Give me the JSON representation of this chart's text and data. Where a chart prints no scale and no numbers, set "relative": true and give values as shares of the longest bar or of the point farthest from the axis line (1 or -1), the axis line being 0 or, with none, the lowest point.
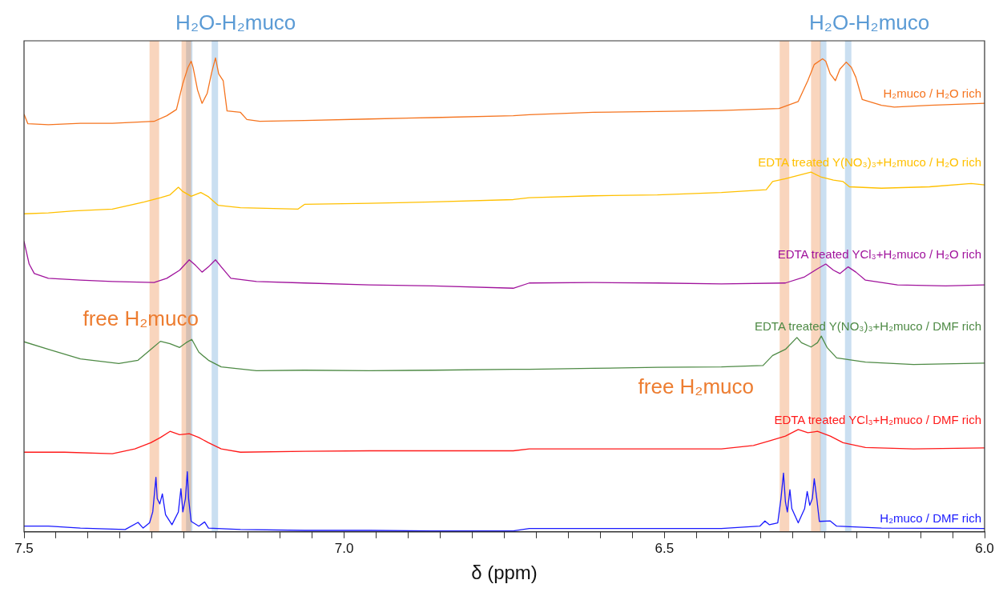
{
  "chart_data": {
    "type": "line",
    "xlabel": "δ (ppm)",
    "relative": true,
    "grid": false,
    "legend": false,
    "marker": "none",
    "line_style": "solid",
    "tick_labels": "x",
    "xlim": [
      7.5,
      6.0
    ],
    "xticks": [
      7.5,
      {
        "value": 7.45,
        "label": null
      },
      {
        "value": 7.4,
        "label": null
      },
      {
        "value": 7.35,
        "label": null
      },
      {
        "value": 7.3,
        "label": null
      },
      {
        "value": 7.25,
        "label": null
      },
      {
        "value": 7.2,
        "label": null
      },
      {
        "value": 7.15,
        "label": null
      },
      {
        "value": 7.1,
        "label": null
      },
      {
        "value": 7.05,
        "label": null
      },
      {
        "value": 7.0,
        "label": "7.0"
      },
      {
        "value": 6.95,
        "label": null
      },
      {
        "value": 6.9,
        "label": null
      },
      {
        "value": 6.85,
        "label": null
      },
      {
        "value": 6.8,
        "label": null
      },
      {
        "value": 6.75,
        "label": null
      },
      {
        "value": 6.7,
        "label": null
      },
      {
        "value": 6.65,
        "label": null
      },
      {
        "value": 6.6,
        "label": null
      },
      {
        "value": 6.55,
        "label": null
      },
      6.5,
      {
        "value": 6.45,
        "label": null
      },
      {
        "value": 6.4,
        "label": null
      },
      {
        "value": 6.35,
        "label": null
      },
      {
        "value": 6.3,
        "label": null
      },
      {
        "value": 6.25,
        "label": null
      },
      {
        "value": 6.2,
        "label": null
      },
      {
        "value": 6.15,
        "label": null
      },
      {
        "value": 6.1,
        "label": null
      },
      {
        "value": 6.05,
        "label": null
      },
      {
        "value": 6.0,
        "label": "6.0"
      }
    ],
    "bands": [
      {
        "axis": "x",
        "from": 7.247,
        "to": 7.237,
        "color": "#5b9bd5"
      },
      {
        "axis": "x",
        "from": 7.207,
        "to": 7.197,
        "color": "#5b9bd5"
      },
      {
        "axis": "x",
        "from": 6.257,
        "to": 6.247,
        "color": "#5b9bd5"
      },
      {
        "axis": "x",
        "from": 6.218,
        "to": 6.208,
        "color": "#5b9bd5"
      },
      {
        "axis": "x",
        "from": 7.304,
        "to": 7.289,
        "color": "#ed7d31"
      },
      {
        "axis": "x",
        "from": 7.254,
        "to": 7.239,
        "color": "#ed7d31"
      },
      {
        "axis": "x",
        "from": 6.32,
        "to": 6.305,
        "color": "#ed7d31"
      },
      {
        "axis": "x",
        "from": 6.271,
        "to": 6.256,
        "color": "#ed7d31"
      }
    ],
    "annotations": [
      "H₂O-H₂muco",
      "H₂O-H₂muco",
      "free H₂muco",
      "free H₂muco"
    ],
    "series": [
      {
        "name": "H₂muco / H₂O rich",
        "color": "#f5741f",
        "x": [
          7.5,
          7.494,
          7.462,
          7.412,
          7.362,
          7.297,
          7.277,
          7.262,
          7.252,
          7.244,
          7.239,
          7.236,
          7.229,
          7.222,
          7.214,
          7.207,
          7.201,
          7.196,
          7.189,
          7.183,
          7.162,
          7.152,
          7.132,
          7.062,
          6.961,
          6.861,
          6.736,
          6.711,
          6.611,
          6.511,
          6.411,
          6.321,
          6.291,
          6.276,
          6.266,
          6.253,
          6.248,
          6.241,
          6.233,
          6.226,
          6.216,
          6.208,
          6.201,
          6.191,
          6.161,
          6.141,
          6.086,
          6.0
        ],
        "values": [
          0.881,
          0.861,
          0.859,
          0.862,
          0.862,
          0.866,
          0.878,
          0.891,
          0.946,
          0.98,
          0.993,
          0.98,
          0.932,
          0.904,
          0.925,
          0.969,
          1,
          0.966,
          0.952,
          0.888,
          0.885,
          0.87,
          0.866,
          0.868,
          0.871,
          0.874,
          0.878,
          0.88,
          0.885,
          0.887,
          0.889,
          0.893,
          0.908,
          0.952,
          0.986,
          0.998,
          0.993,
          0.966,
          0.952,
          0.976,
          0.991,
          0.98,
          0.959,
          0.912,
          0.9,
          0.896,
          0.9,
          0.904
        ]
      },
      {
        "name": "EDTA treated Y(NO₃)₃+H₂muco / H₂O rich",
        "color": "#ffc000",
        "x": [
          7.5,
          7.462,
          7.422,
          7.362,
          7.312,
          7.287,
          7.272,
          7.259,
          7.252,
          7.239,
          7.224,
          7.212,
          7.197,
          7.162,
          7.072,
          7.062,
          6.961,
          6.861,
          6.736,
          6.711,
          6.611,
          6.511,
          6.411,
          6.341,
          6.331,
          6.311,
          6.271,
          6.256,
          6.236,
          6.221,
          6.211,
          6.161,
          6.086,
          6.021,
          6.0
        ],
        "values": [
          0.671,
          0.673,
          0.677,
          0.681,
          0.696,
          0.705,
          0.711,
          0.727,
          0.718,
          0.708,
          0.716,
          0.707,
          0.689,
          0.684,
          0.681,
          0.691,
          0.693,
          0.696,
          0.701,
          0.705,
          0.709,
          0.711,
          0.716,
          0.722,
          0.739,
          0.745,
          0.759,
          0.749,
          0.742,
          0.739,
          0.728,
          0.725,
          0.728,
          0.735,
          0.732
        ]
      },
      {
        "name": "EDTA treated YCl₃+H₂muco / H₂O rich",
        "color": "#a0139c",
        "x": [
          7.5,
          7.492,
          7.484,
          7.462,
          7.412,
          7.362,
          7.297,
          7.277,
          7.257,
          7.242,
          7.232,
          7.222,
          7.212,
          7.201,
          7.192,
          7.177,
          7.137,
          7.062,
          6.961,
          6.861,
          6.736,
          6.711,
          6.611,
          6.511,
          6.411,
          6.311,
          6.281,
          6.261,
          6.248,
          6.236,
          6.226,
          6.213,
          6.201,
          6.186,
          6.136,
          6.061,
          6.0
        ],
        "values": [
          0.613,
          0.565,
          0.545,
          0.535,
          0.531,
          0.528,
          0.526,
          0.535,
          0.552,
          0.574,
          0.562,
          0.548,
          0.559,
          0.574,
          0.559,
          0.535,
          0.528,
          0.525,
          0.521,
          0.519,
          0.514,
          0.525,
          0.526,
          0.525,
          0.523,
          0.525,
          0.538,
          0.555,
          0.565,
          0.552,
          0.545,
          0.559,
          0.548,
          0.531,
          0.521,
          0.519,
          0.521
        ]
      },
      {
        "name": "EDTA treated Y(NO₃)₃+H₂muco / DMF rich",
        "color": "#4e8a45",
        "x": [
          7.5,
          7.462,
          7.412,
          7.352,
          7.322,
          7.302,
          7.287,
          7.272,
          7.257,
          7.247,
          7.238,
          7.227,
          7.212,
          7.192,
          7.137,
          7.062,
          6.961,
          6.861,
          6.736,
          6.711,
          6.611,
          6.511,
          6.411,
          6.346,
          6.331,
          6.311,
          6.293,
          6.286,
          6.271,
          6.261,
          6.255,
          6.246,
          6.231,
          6.186,
          6.111,
          6.0
        ],
        "values": [
          0.401,
          0.385,
          0.365,
          0.355,
          0.362,
          0.385,
          0.402,
          0.397,
          0.389,
          0.399,
          0.406,
          0.379,
          0.362,
          0.348,
          0.34,
          0.341,
          0.34,
          0.341,
          0.343,
          0.343,
          0.345,
          0.347,
          0.348,
          0.351,
          0.372,
          0.385,
          0.41,
          0.399,
          0.39,
          0.399,
          0.413,
          0.389,
          0.367,
          0.358,
          0.353,
          0.356
        ]
      },
      {
        "name": "EDTA treated YCl₃+H₂muco / DMF rich",
        "color": "#ff1a1a",
        "x": [
          7.5,
          7.437,
          7.362,
          7.327,
          7.302,
          7.287,
          7.272,
          7.257,
          7.242,
          7.227,
          7.212,
          7.192,
          7.162,
          7.062,
          6.961,
          6.861,
          6.736,
          6.711,
          6.611,
          6.511,
          6.411,
          6.361,
          6.336,
          6.311,
          6.291,
          6.276,
          6.261,
          6.241,
          6.221,
          6.186,
          6.111,
          6.0
        ],
        "values": [
          0.168,
          0.168,
          0.165,
          0.175,
          0.188,
          0.199,
          0.212,
          0.205,
          0.207,
          0.199,
          0.188,
          0.175,
          0.168,
          0.17,
          0.171,
          0.171,
          0.171,
          0.175,
          0.175,
          0.175,
          0.175,
          0.182,
          0.192,
          0.202,
          0.216,
          0.209,
          0.212,
          0.202,
          0.188,
          0.178,
          0.175,
          0.177
        ]
      },
      {
        "name": "H₂muco / DMF rich",
        "color": "#1a1aff",
        "x": [
          7.5,
          7.462,
          7.412,
          7.342,
          7.322,
          7.314,
          7.304,
          7.299,
          7.294,
          7.292,
          7.288,
          7.284,
          7.279,
          7.269,
          7.259,
          7.255,
          7.252,
          7.248,
          7.245,
          7.243,
          7.239,
          7.227,
          7.218,
          7.212,
          7.162,
          7.062,
          6.961,
          6.861,
          6.736,
          6.711,
          6.611,
          6.511,
          6.411,
          6.351,
          6.343,
          6.336,
          6.323,
          6.318,
          6.314,
          6.311,
          6.308,
          6.304,
          6.301,
          6.291,
          6.281,
          6.277,
          6.273,
          6.269,
          6.266,
          6.262,
          6.258,
          6.241,
          6.231,
          6.161,
          6.0
        ],
        "values": [
          0.012,
          0.012,
          0.008,
          0.005,
          0.02,
          0.008,
          0.019,
          0.042,
          0.115,
          0.07,
          0.059,
          0.08,
          0.036,
          0.015,
          0.042,
          0.091,
          0.042,
          0.07,
          0.127,
          0.07,
          0.022,
          0.012,
          0.021,
          0.008,
          0.005,
          0.003,
          0.003,
          0.002,
          0.002,
          0.007,
          0.007,
          0.007,
          0.007,
          0.012,
          0.023,
          0.015,
          0.019,
          0.07,
          0.124,
          0.063,
          0.042,
          0.089,
          0.049,
          0.019,
          0.049,
          0.085,
          0.056,
          0.07,
          0.112,
          0.07,
          0.022,
          0.023,
          0.012,
          0.008,
          0.007
        ]
      }
    ]
  }
}
